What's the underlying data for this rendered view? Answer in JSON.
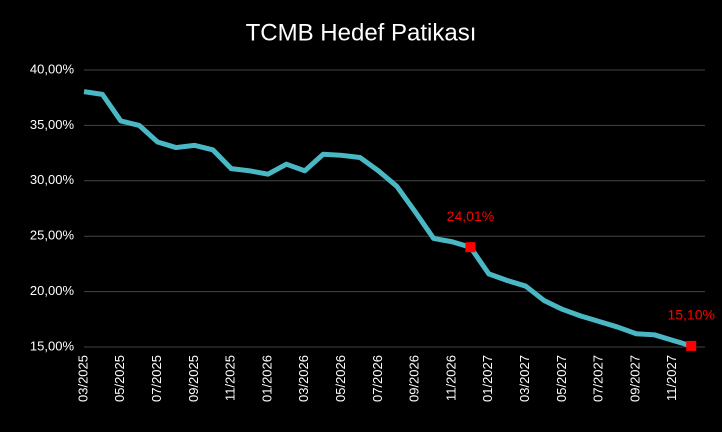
{
  "chart_data": {
    "type": "line",
    "title": "TCMB Hedef Patikası",
    "categories": [
      "03/2025",
      null,
      "05/2025",
      null,
      "07/2025",
      null,
      "09/2025",
      null,
      "11/2025",
      null,
      "01/2026",
      null,
      "03/2026",
      null,
      "05/2026",
      null,
      "07/2026",
      null,
      "09/2026",
      null,
      "11/2026",
      null,
      "01/2027",
      null,
      "03/2027",
      null,
      "05/2027",
      null,
      "07/2027",
      null,
      "09/2027",
      null,
      "11/2027",
      null
    ],
    "series": [
      {
        "name": "TCMB Hedef Patikası",
        "color": "#4ab8c4",
        "values": [
          38.05,
          37.8,
          35.4,
          35.0,
          33.5,
          33.0,
          33.2,
          32.8,
          31.1,
          30.9,
          30.6,
          31.5,
          30.9,
          32.4,
          32.3,
          32.1,
          30.9,
          29.5,
          27.2,
          24.8,
          24.5,
          24.01,
          21.6,
          21.0,
          20.5,
          19.2,
          18.4,
          17.8,
          17.3,
          16.8,
          16.2,
          16.1,
          15.6,
          15.1
        ],
        "value_labels": [
          null,
          null,
          null,
          null,
          null,
          null,
          null,
          null,
          null,
          null,
          null,
          null,
          null,
          null,
          null,
          null,
          null,
          null,
          null,
          null,
          null,
          "24,01%",
          null,
          null,
          null,
          null,
          null,
          null,
          null,
          null,
          null,
          null,
          null,
          "15,10%"
        ],
        "marker_color": "#ff0000"
      }
    ],
    "ylim": [
      15,
      40
    ],
    "yticks": [
      {
        "value": 15,
        "label": "15,00%"
      },
      {
        "value": 20,
        "label": "20,00%"
      },
      {
        "value": 25,
        "label": "25,00%"
      },
      {
        "value": 30,
        "label": "30,00%"
      },
      {
        "value": 35,
        "label": "35,00%"
      },
      {
        "value": 40,
        "label": "40,00%"
      }
    ],
    "grid": true
  }
}
